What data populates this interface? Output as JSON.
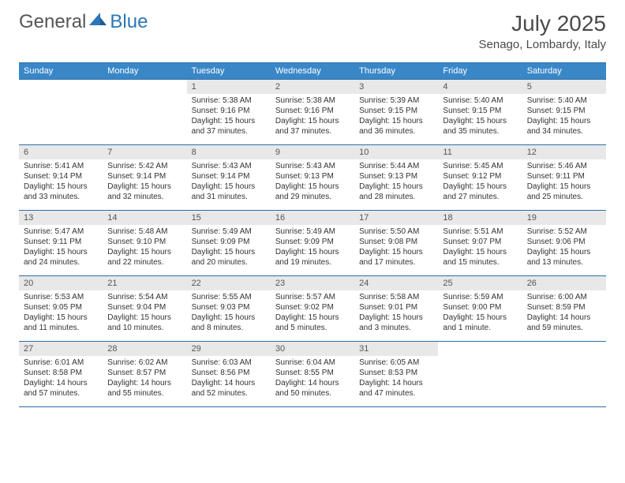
{
  "logo": {
    "text1": "General",
    "text2": "Blue"
  },
  "title": "July 2025",
  "location": "Senago, Lombardy, Italy",
  "weekdays": [
    "Sunday",
    "Monday",
    "Tuesday",
    "Wednesday",
    "Thursday",
    "Friday",
    "Saturday"
  ],
  "colors": {
    "header_bg": "#3a87c8",
    "border": "#2a6ea8",
    "daynum_bg": "#e8e8e8",
    "text": "#333333",
    "logo_gray": "#555555",
    "logo_blue": "#2a76b8"
  },
  "weeks": [
    [
      null,
      null,
      {
        "n": "1",
        "sr": "Sunrise: 5:38 AM",
        "ss": "Sunset: 9:16 PM",
        "d1": "Daylight: 15 hours",
        "d2": "and 37 minutes."
      },
      {
        "n": "2",
        "sr": "Sunrise: 5:38 AM",
        "ss": "Sunset: 9:16 PM",
        "d1": "Daylight: 15 hours",
        "d2": "and 37 minutes."
      },
      {
        "n": "3",
        "sr": "Sunrise: 5:39 AM",
        "ss": "Sunset: 9:15 PM",
        "d1": "Daylight: 15 hours",
        "d2": "and 36 minutes."
      },
      {
        "n": "4",
        "sr": "Sunrise: 5:40 AM",
        "ss": "Sunset: 9:15 PM",
        "d1": "Daylight: 15 hours",
        "d2": "and 35 minutes."
      },
      {
        "n": "5",
        "sr": "Sunrise: 5:40 AM",
        "ss": "Sunset: 9:15 PM",
        "d1": "Daylight: 15 hours",
        "d2": "and 34 minutes."
      }
    ],
    [
      {
        "n": "6",
        "sr": "Sunrise: 5:41 AM",
        "ss": "Sunset: 9:14 PM",
        "d1": "Daylight: 15 hours",
        "d2": "and 33 minutes."
      },
      {
        "n": "7",
        "sr": "Sunrise: 5:42 AM",
        "ss": "Sunset: 9:14 PM",
        "d1": "Daylight: 15 hours",
        "d2": "and 32 minutes."
      },
      {
        "n": "8",
        "sr": "Sunrise: 5:43 AM",
        "ss": "Sunset: 9:14 PM",
        "d1": "Daylight: 15 hours",
        "d2": "and 31 minutes."
      },
      {
        "n": "9",
        "sr": "Sunrise: 5:43 AM",
        "ss": "Sunset: 9:13 PM",
        "d1": "Daylight: 15 hours",
        "d2": "and 29 minutes."
      },
      {
        "n": "10",
        "sr": "Sunrise: 5:44 AM",
        "ss": "Sunset: 9:13 PM",
        "d1": "Daylight: 15 hours",
        "d2": "and 28 minutes."
      },
      {
        "n": "11",
        "sr": "Sunrise: 5:45 AM",
        "ss": "Sunset: 9:12 PM",
        "d1": "Daylight: 15 hours",
        "d2": "and 27 minutes."
      },
      {
        "n": "12",
        "sr": "Sunrise: 5:46 AM",
        "ss": "Sunset: 9:11 PM",
        "d1": "Daylight: 15 hours",
        "d2": "and 25 minutes."
      }
    ],
    [
      {
        "n": "13",
        "sr": "Sunrise: 5:47 AM",
        "ss": "Sunset: 9:11 PM",
        "d1": "Daylight: 15 hours",
        "d2": "and 24 minutes."
      },
      {
        "n": "14",
        "sr": "Sunrise: 5:48 AM",
        "ss": "Sunset: 9:10 PM",
        "d1": "Daylight: 15 hours",
        "d2": "and 22 minutes."
      },
      {
        "n": "15",
        "sr": "Sunrise: 5:49 AM",
        "ss": "Sunset: 9:09 PM",
        "d1": "Daylight: 15 hours",
        "d2": "and 20 minutes."
      },
      {
        "n": "16",
        "sr": "Sunrise: 5:49 AM",
        "ss": "Sunset: 9:09 PM",
        "d1": "Daylight: 15 hours",
        "d2": "and 19 minutes."
      },
      {
        "n": "17",
        "sr": "Sunrise: 5:50 AM",
        "ss": "Sunset: 9:08 PM",
        "d1": "Daylight: 15 hours",
        "d2": "and 17 minutes."
      },
      {
        "n": "18",
        "sr": "Sunrise: 5:51 AM",
        "ss": "Sunset: 9:07 PM",
        "d1": "Daylight: 15 hours",
        "d2": "and 15 minutes."
      },
      {
        "n": "19",
        "sr": "Sunrise: 5:52 AM",
        "ss": "Sunset: 9:06 PM",
        "d1": "Daylight: 15 hours",
        "d2": "and 13 minutes."
      }
    ],
    [
      {
        "n": "20",
        "sr": "Sunrise: 5:53 AM",
        "ss": "Sunset: 9:05 PM",
        "d1": "Daylight: 15 hours",
        "d2": "and 11 minutes."
      },
      {
        "n": "21",
        "sr": "Sunrise: 5:54 AM",
        "ss": "Sunset: 9:04 PM",
        "d1": "Daylight: 15 hours",
        "d2": "and 10 minutes."
      },
      {
        "n": "22",
        "sr": "Sunrise: 5:55 AM",
        "ss": "Sunset: 9:03 PM",
        "d1": "Daylight: 15 hours",
        "d2": "and 8 minutes."
      },
      {
        "n": "23",
        "sr": "Sunrise: 5:57 AM",
        "ss": "Sunset: 9:02 PM",
        "d1": "Daylight: 15 hours",
        "d2": "and 5 minutes."
      },
      {
        "n": "24",
        "sr": "Sunrise: 5:58 AM",
        "ss": "Sunset: 9:01 PM",
        "d1": "Daylight: 15 hours",
        "d2": "and 3 minutes."
      },
      {
        "n": "25",
        "sr": "Sunrise: 5:59 AM",
        "ss": "Sunset: 9:00 PM",
        "d1": "Daylight: 15 hours",
        "d2": "and 1 minute."
      },
      {
        "n": "26",
        "sr": "Sunrise: 6:00 AM",
        "ss": "Sunset: 8:59 PM",
        "d1": "Daylight: 14 hours",
        "d2": "and 59 minutes."
      }
    ],
    [
      {
        "n": "27",
        "sr": "Sunrise: 6:01 AM",
        "ss": "Sunset: 8:58 PM",
        "d1": "Daylight: 14 hours",
        "d2": "and 57 minutes."
      },
      {
        "n": "28",
        "sr": "Sunrise: 6:02 AM",
        "ss": "Sunset: 8:57 PM",
        "d1": "Daylight: 14 hours",
        "d2": "and 55 minutes."
      },
      {
        "n": "29",
        "sr": "Sunrise: 6:03 AM",
        "ss": "Sunset: 8:56 PM",
        "d1": "Daylight: 14 hours",
        "d2": "and 52 minutes."
      },
      {
        "n": "30",
        "sr": "Sunrise: 6:04 AM",
        "ss": "Sunset: 8:55 PM",
        "d1": "Daylight: 14 hours",
        "d2": "and 50 minutes."
      },
      {
        "n": "31",
        "sr": "Sunrise: 6:05 AM",
        "ss": "Sunset: 8:53 PM",
        "d1": "Daylight: 14 hours",
        "d2": "and 47 minutes."
      },
      null,
      null
    ]
  ]
}
